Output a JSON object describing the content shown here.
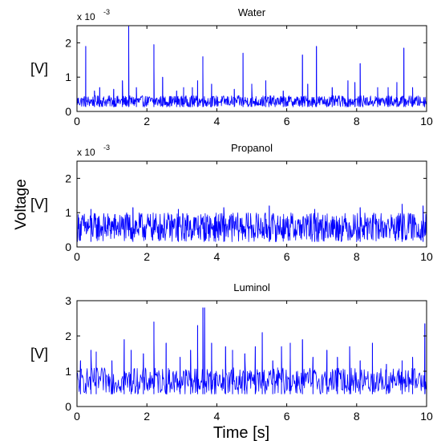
{
  "figure": {
    "ylabel": "Voltage",
    "xlabel": "Time [s]"
  },
  "chart_data": [
    {
      "type": "line",
      "title": "Water",
      "ylabel": "[V]",
      "scale_label": "x 10",
      "scale_exp": "-3",
      "xlim": [
        0,
        10
      ],
      "ylim": [
        0,
        2.5
      ],
      "xticks": [
        "0",
        "2",
        "4",
        "6",
        "8",
        "10"
      ],
      "yticks": [
        "0",
        "1",
        "2"
      ],
      "grid": false,
      "series": [
        {
          "color": "#0000ff",
          "noise": {
            "baseline": 0.13,
            "amplitude": 0.33,
            "samples": 900
          },
          "spikes": [
            {
              "x": 0.25,
              "y": 1.9
            },
            {
              "x": 0.5,
              "y": 0.6
            },
            {
              "x": 0.65,
              "y": 0.7
            },
            {
              "x": 1.05,
              "y": 0.65
            },
            {
              "x": 1.3,
              "y": 0.9
            },
            {
              "x": 1.48,
              "y": 2.48
            },
            {
              "x": 1.7,
              "y": 0.7
            },
            {
              "x": 2.2,
              "y": 1.95
            },
            {
              "x": 2.45,
              "y": 1.0
            },
            {
              "x": 2.85,
              "y": 0.6
            },
            {
              "x": 3.05,
              "y": 0.7
            },
            {
              "x": 3.3,
              "y": 0.7
            },
            {
              "x": 3.45,
              "y": 0.9
            },
            {
              "x": 3.6,
              "y": 1.6
            },
            {
              "x": 3.85,
              "y": 0.8
            },
            {
              "x": 4.5,
              "y": 0.65
            },
            {
              "x": 4.75,
              "y": 1.7
            },
            {
              "x": 5.0,
              "y": 0.8
            },
            {
              "x": 5.4,
              "y": 0.9
            },
            {
              "x": 5.9,
              "y": 0.6
            },
            {
              "x": 6.45,
              "y": 1.65
            },
            {
              "x": 6.6,
              "y": 0.8
            },
            {
              "x": 6.85,
              "y": 1.9
            },
            {
              "x": 7.3,
              "y": 0.7
            },
            {
              "x": 7.75,
              "y": 0.9
            },
            {
              "x": 7.95,
              "y": 0.85
            },
            {
              "x": 8.1,
              "y": 1.4
            },
            {
              "x": 8.6,
              "y": 0.7
            },
            {
              "x": 8.9,
              "y": 0.7
            },
            {
              "x": 9.15,
              "y": 0.85
            },
            {
              "x": 9.35,
              "y": 1.85
            },
            {
              "x": 9.6,
              "y": 0.7
            }
          ]
        }
      ]
    },
    {
      "type": "line",
      "title": "Propanol",
      "ylabel": "[V]",
      "scale_label": "x 10",
      "scale_exp": "-3",
      "xlim": [
        0,
        10
      ],
      "ylim": [
        0,
        2.5
      ],
      "xticks": [
        "0",
        "2",
        "4",
        "6",
        "8",
        "10"
      ],
      "yticks": [
        "0",
        "1",
        "2"
      ],
      "grid": false,
      "series": [
        {
          "color": "#0000ff",
          "noise": {
            "baseline": 0.15,
            "amplitude": 0.85,
            "samples": 900
          },
          "spikes": [
            {
              "x": 0.4,
              "y": 1.1
            },
            {
              "x": 1.6,
              "y": 1.15
            },
            {
              "x": 2.9,
              "y": 1.1
            },
            {
              "x": 4.2,
              "y": 1.15
            },
            {
              "x": 5.5,
              "y": 1.2
            },
            {
              "x": 6.8,
              "y": 1.1
            },
            {
              "x": 8.1,
              "y": 1.15
            },
            {
              "x": 9.3,
              "y": 1.25
            },
            {
              "x": 9.9,
              "y": 1.2
            }
          ]
        }
      ]
    },
    {
      "type": "line",
      "title": "Luminol",
      "ylabel": "[V]",
      "xlim": [
        0,
        10
      ],
      "ylim": [
        0,
        3
      ],
      "xticks": [
        "0",
        "2",
        "4",
        "6",
        "8",
        "10"
      ],
      "yticks": [
        "0",
        "1",
        "2",
        "3"
      ],
      "grid": false,
      "series": [
        {
          "color": "#0000ff",
          "noise": {
            "baseline": 0.35,
            "amplitude": 0.75,
            "samples": 650
          },
          "spikes": [
            {
              "x": 0.1,
              "y": 1.3
            },
            {
              "x": 0.4,
              "y": 1.6
            },
            {
              "x": 0.55,
              "y": 1.55
            },
            {
              "x": 1.0,
              "y": 1.3
            },
            {
              "x": 1.35,
              "y": 1.9
            },
            {
              "x": 1.55,
              "y": 1.6
            },
            {
              "x": 1.9,
              "y": 1.5
            },
            {
              "x": 2.2,
              "y": 2.4
            },
            {
              "x": 2.55,
              "y": 1.8
            },
            {
              "x": 2.95,
              "y": 1.4
            },
            {
              "x": 3.25,
              "y": 1.6
            },
            {
              "x": 3.45,
              "y": 2.3
            },
            {
              "x": 3.6,
              "y": 2.8
            },
            {
              "x": 3.65,
              "y": 2.8
            },
            {
              "x": 3.85,
              "y": 1.8
            },
            {
              "x": 4.25,
              "y": 1.7
            },
            {
              "x": 4.45,
              "y": 1.6
            },
            {
              "x": 4.8,
              "y": 1.5
            },
            {
              "x": 5.1,
              "y": 1.7
            },
            {
              "x": 5.3,
              "y": 2.1
            },
            {
              "x": 5.6,
              "y": 1.3
            },
            {
              "x": 5.85,
              "y": 1.7
            },
            {
              "x": 6.1,
              "y": 1.8
            },
            {
              "x": 6.45,
              "y": 1.9
            },
            {
              "x": 6.75,
              "y": 1.4
            },
            {
              "x": 7.15,
              "y": 1.6
            },
            {
              "x": 7.45,
              "y": 1.4
            },
            {
              "x": 7.8,
              "y": 1.7
            },
            {
              "x": 8.1,
              "y": 1.3
            },
            {
              "x": 8.45,
              "y": 1.8
            },
            {
              "x": 8.85,
              "y": 1.2
            },
            {
              "x": 9.3,
              "y": 1.3
            },
            {
              "x": 9.6,
              "y": 1.4
            },
            {
              "x": 9.95,
              "y": 2.35
            }
          ]
        }
      ]
    }
  ]
}
